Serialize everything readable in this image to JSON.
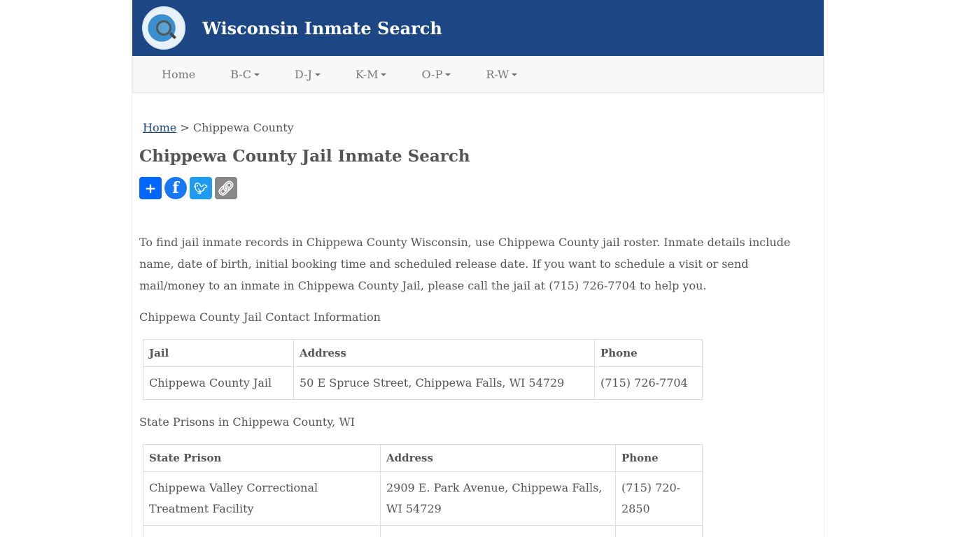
{
  "header": {
    "site_title": "Wisconsin Inmate Search"
  },
  "nav": {
    "items": [
      "Home",
      "B-C",
      "D-J",
      "K-M",
      "O-P",
      "R-W"
    ]
  },
  "breadcrumb": {
    "home": "Home",
    "separator": ">",
    "current": "Chippewa County"
  },
  "page_title": "Chippewa County Jail Inmate Search",
  "share": {
    "icons": [
      "share-plus-icon",
      "facebook-icon",
      "twitter-icon",
      "copy-link-icon"
    ],
    "colors": [
      "#0166ff",
      "#1877f2",
      "#1d9bf0",
      "#888888"
    ]
  },
  "intro": "To find jail inmate records in Chippewa County Wisconsin, use Chippewa County jail roster. Inmate details include name, date of birth, initial booking time and scheduled release date. If you want to schedule a visit or send mail/money to an inmate in Chippewa County Jail, please call the jail at (715) 726-7704 to help you.",
  "jail_section": {
    "heading": "Chippewa County Jail Contact Information",
    "columns": [
      "Jail",
      "Address",
      "Phone"
    ],
    "rows": [
      [
        "Chippewa County Jail",
        "50 E Spruce Street, Chippewa Falls, WI 54729",
        "(715) 726-7704"
      ]
    ]
  },
  "prison_section": {
    "heading": "State Prisons in Chippewa County, WI",
    "columns": [
      "State Prison",
      "Address",
      "Phone"
    ],
    "rows": [
      [
        "Chippewa Valley Correctional Treatment Facility",
        "2909 E. Park Avenue, Chippewa Falls, WI 54729",
        "(715) 720-2850"
      ]
    ]
  }
}
